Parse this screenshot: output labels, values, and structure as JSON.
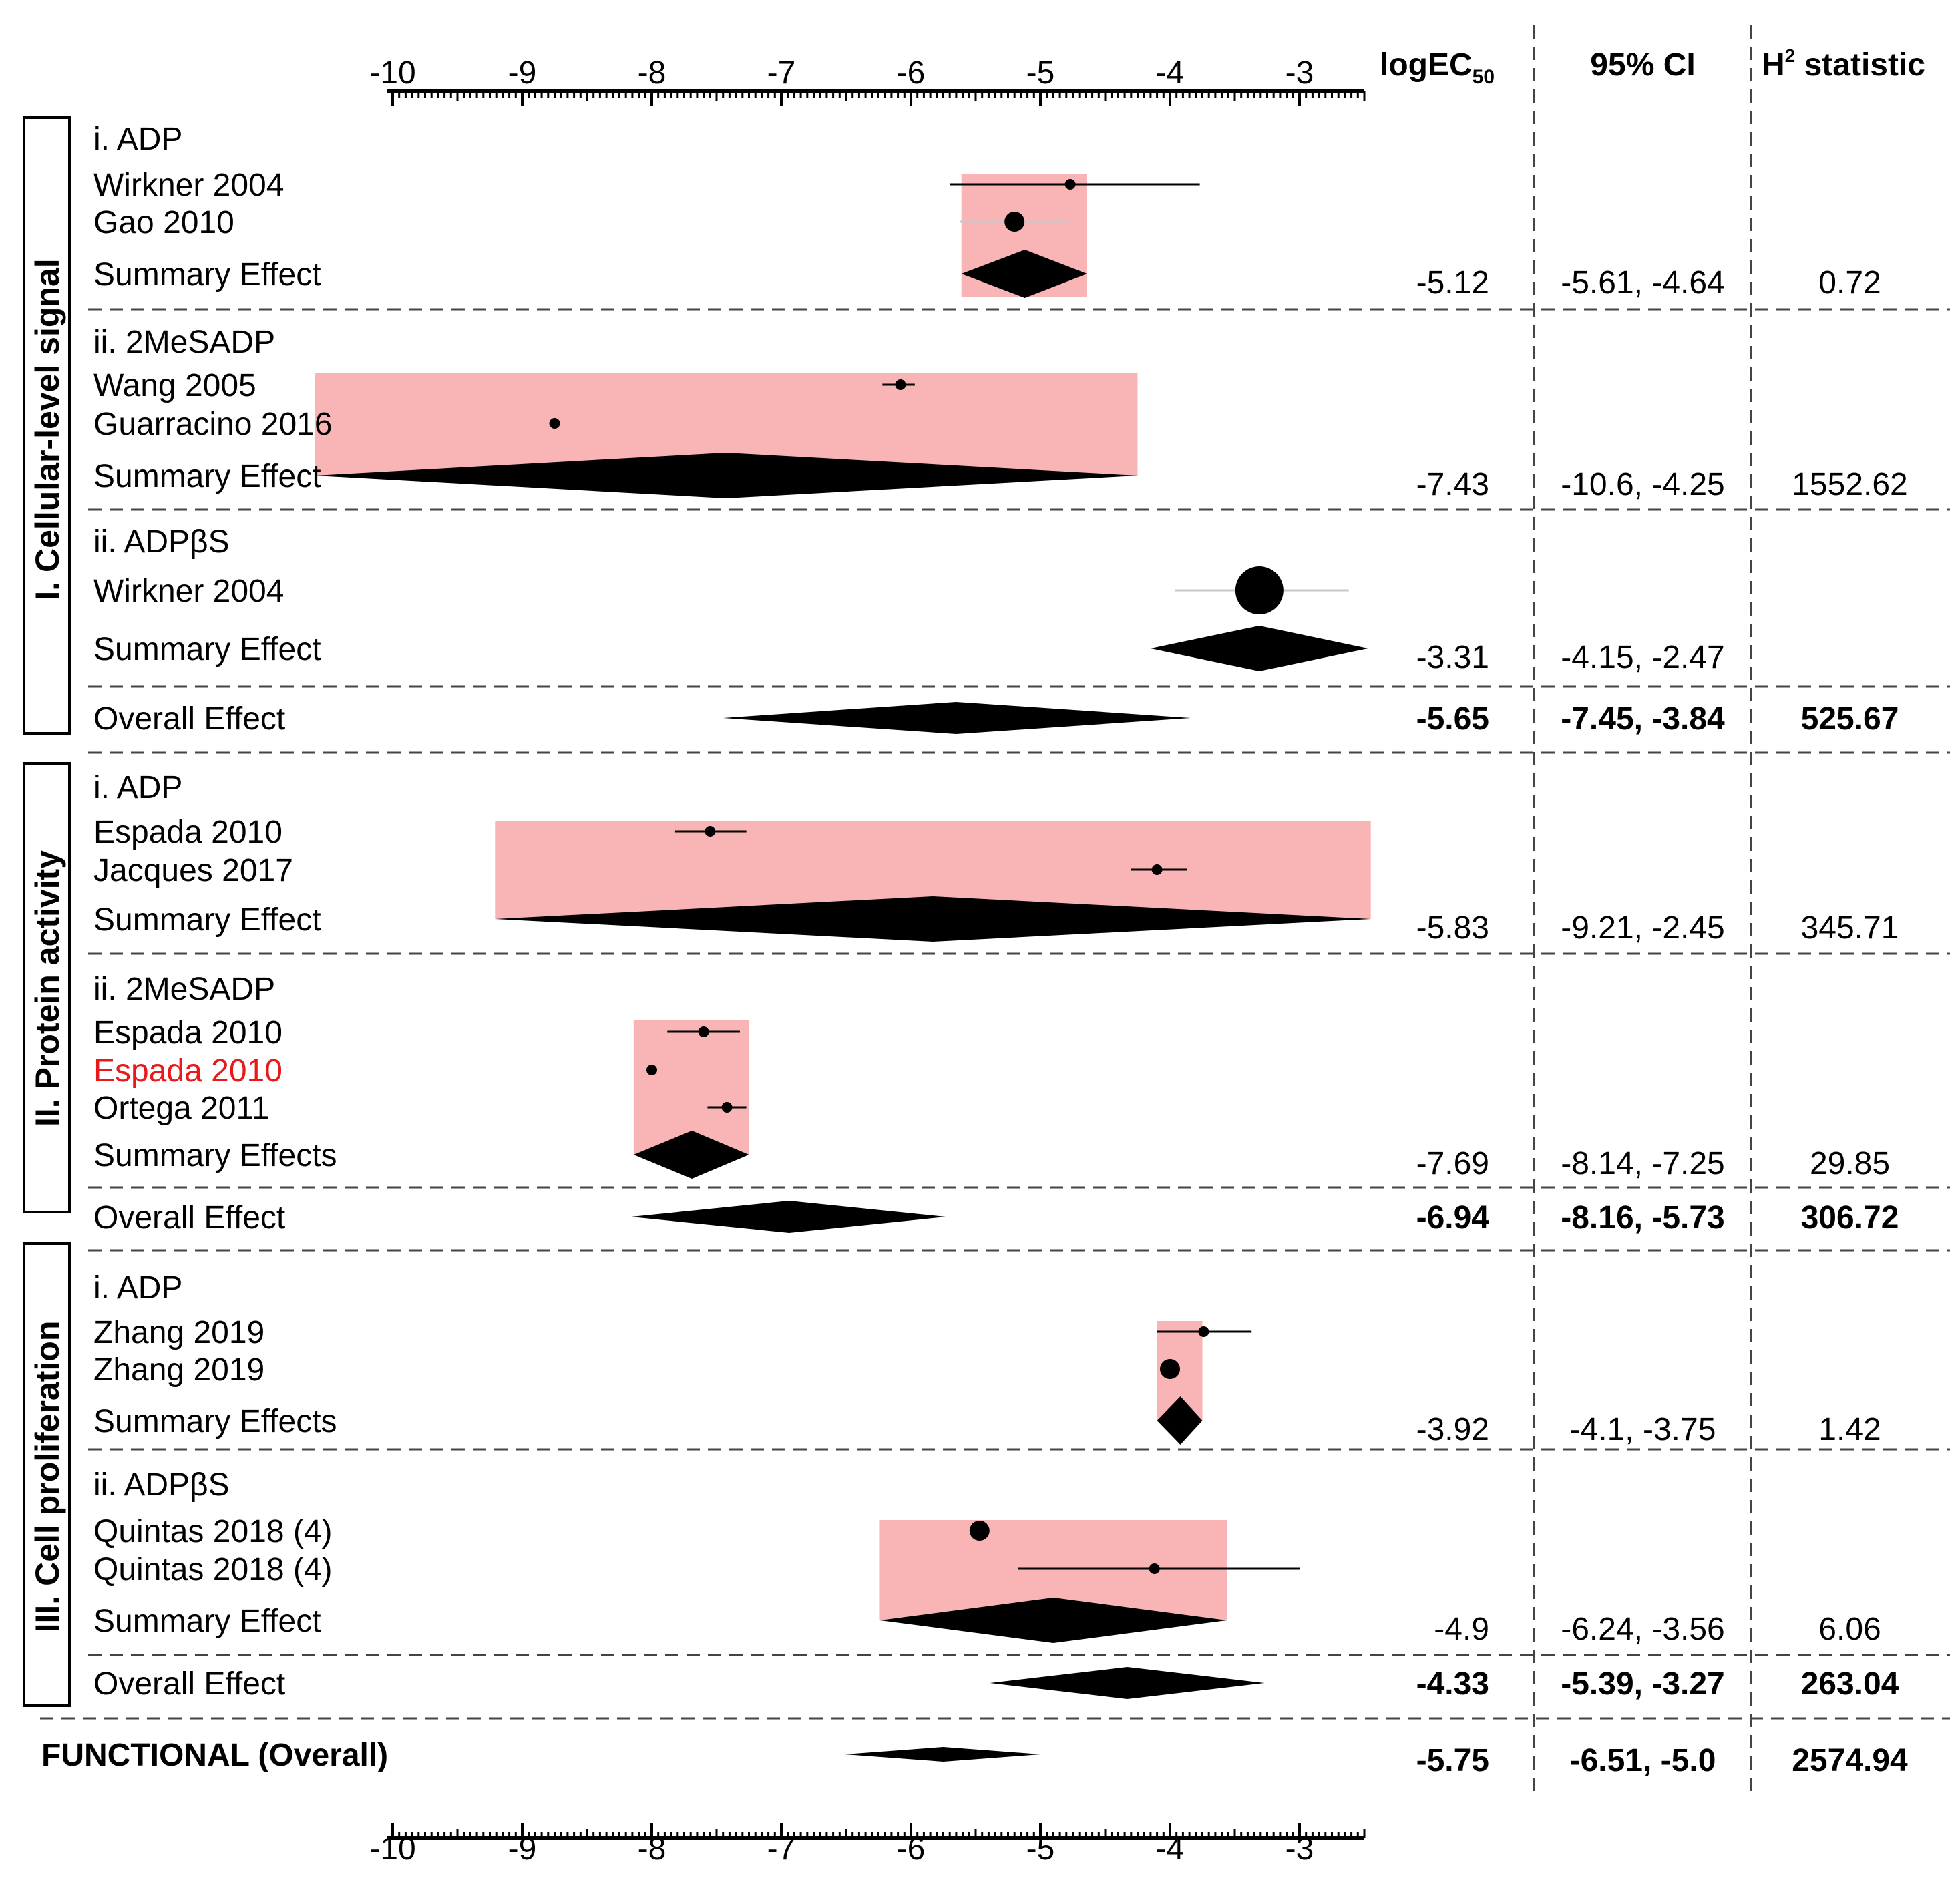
{
  "chart_data": {
    "type": "forest",
    "axis": {
      "label": "logEC50",
      "ticks": [
        "-10",
        "-9",
        "-8",
        "-7",
        "-6",
        "-5",
        "-4",
        "-3"
      ],
      "range": [
        -10,
        -2.5
      ]
    },
    "columns": {
      "logec_main": "logEC",
      "logec_sub": "50",
      "ci": "95% CI",
      "h2_main": "H",
      "h2_sup": "2",
      "h2_rest": " statistic"
    },
    "row_groups": [
      {
        "section": "I. Cellular-level signal",
        "groups": [
          {
            "header": "i. ADP",
            "studies": [
              {
                "label": "Wirkner 2004",
                "est": -4.77,
                "lo": -5.7,
                "hi": -3.77,
                "size": "small"
              },
              {
                "label": "Gao 2010",
                "est": -5.2,
                "lo": -5.62,
                "hi": -4.77,
                "size": "medium"
              }
            ],
            "summary": {
              "label": "Summary Effect",
              "est": -5.12,
              "lo": -5.61,
              "hi": -4.64,
              "logec": "-5.12",
              "ci": "-5.61, -4.64",
              "h2": "0.72"
            }
          },
          {
            "header": "ii. 2MeSADP",
            "studies": [
              {
                "label": "Wang 2005",
                "est": -6.08,
                "lo": -6.22,
                "hi": -5.97,
                "size": "small"
              },
              {
                "label": "Guarracino 2016",
                "est": -8.75,
                "lo": -8.75,
                "hi": -8.75,
                "size": "small"
              }
            ],
            "summary": {
              "label": "Summary Effect",
              "est": -7.43,
              "lo": -10.6,
              "hi": -4.25,
              "logec": "-7.43",
              "ci": "-10.6, -4.25",
              "h2": "1552.62"
            }
          },
          {
            "header": "ii. ADPβS",
            "studies": [
              {
                "label": "Wirkner 2004",
                "est": -3.31,
                "lo": -3.96,
                "hi": -2.62,
                "size": "large"
              }
            ],
            "summary": {
              "label": "Summary Effect",
              "est": -3.31,
              "lo": -4.15,
              "hi": -2.47,
              "logec": "-3.31",
              "ci": "-4.15, -2.47",
              "h2": ""
            }
          }
        ],
        "overall": {
          "label": "Overall Effect",
          "est": -5.65,
          "lo": -7.45,
          "hi": -3.84,
          "logec": "-5.65",
          "ci": "-7.45, -3.84",
          "h2": "525.67"
        }
      },
      {
        "section": "II. Protein activity",
        "groups": [
          {
            "header": "i. ADP",
            "studies": [
              {
                "label": "Espada 2010",
                "est": -7.55,
                "lo": -7.82,
                "hi": -7.27,
                "size": "small"
              },
              {
                "label": "Jacques 2017",
                "est": -4.1,
                "lo": -4.3,
                "hi": -3.87,
                "size": "small"
              }
            ],
            "summary": {
              "label": "Summary Effect",
              "est": -5.83,
              "lo": -9.21,
              "hi": -2.45,
              "logec": "-5.83",
              "ci": "-9.21, -2.45",
              "h2": "345.71"
            }
          },
          {
            "header": "ii. 2MeSADP",
            "studies": [
              {
                "label": "Espada 2010",
                "est": -7.6,
                "lo": -7.88,
                "hi": -7.32,
                "size": "small"
              },
              {
                "label": "Espada 2010",
                "est": -8.0,
                "lo": -8.0,
                "hi": -8.0,
                "size": "small",
                "highlight": true
              },
              {
                "label": "Ortega 2011",
                "est": -7.42,
                "lo": -7.57,
                "hi": -7.27,
                "size": "small"
              }
            ],
            "summary": {
              "label": "Summary Effects",
              "est": -7.69,
              "lo": -8.14,
              "hi": -7.25,
              "logec": "-7.69",
              "ci": "-8.14, -7.25",
              "h2": "29.85"
            }
          }
        ],
        "overall": {
          "label": "Overall Effect",
          "est": -6.94,
          "lo": -8.16,
          "hi": -5.73,
          "logec": "-6.94",
          "ci": "-8.16, -5.73",
          "h2": "306.72"
        }
      },
      {
        "section": "III. Cell proliferation",
        "groups": [
          {
            "header": "i. ADP",
            "studies": [
              {
                "label": "Zhang 2019",
                "est": -3.74,
                "lo": -4.1,
                "hi": -3.37,
                "size": "small"
              },
              {
                "label": "Zhang 2019",
                "est": -4.0,
                "lo": -4.0,
                "hi": -4.0,
                "size": "medium"
              }
            ],
            "summary": {
              "label": "Summary Effects",
              "est": -3.92,
              "lo": -4.1,
              "hi": -3.75,
              "logec": "-3.92",
              "ci": "-4.1, -3.75",
              "h2": "1.42"
            }
          },
          {
            "header": "ii. ADPβS",
            "studies": [
              {
                "label": "Quintas 2018 (4)",
                "est": -5.47,
                "lo": -5.47,
                "hi": -5.47,
                "size": "medium"
              },
              {
                "label": "Quintas 2018 (4)",
                "est": -4.12,
                "lo": -5.17,
                "hi": -3.0,
                "size": "small"
              }
            ],
            "summary": {
              "label": "Summary Effect",
              "est": -4.9,
              "lo": -6.24,
              "hi": -3.56,
              "logec": "-4.9",
              "ci": "-6.24, -3.56",
              "h2": "6.06"
            }
          }
        ],
        "overall": {
          "label": "Overall Effect",
          "est": -4.33,
          "lo": -5.39,
          "hi": -3.27,
          "logec": "-4.33",
          "ci": "-5.39, -3.27",
          "h2": "263.04"
        }
      }
    ],
    "grand_overall": {
      "label": "FUNCTIONAL (Overall)",
      "est": -5.75,
      "lo": -6.51,
      "hi": -5.0,
      "logec": "-5.75",
      "ci": "-6.51, -5.0",
      "h2": "2574.94"
    },
    "colors": {
      "band": "#f9b5b5",
      "ink": "#000000",
      "highlight": "#e8191a",
      "whisker_light": "#c8c8c8",
      "dash": "#444444"
    }
  }
}
